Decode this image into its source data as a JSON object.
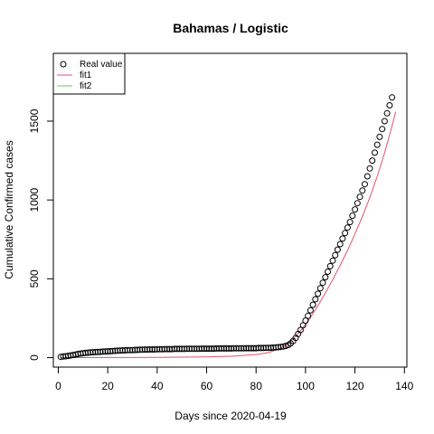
{
  "chart_data": {
    "type": "scatter",
    "title": "Bahamas / Logistic",
    "xlabel": "Days since 2020-04-19",
    "ylabel": "Cumulative Confirmed cases",
    "xlim": [
      -2,
      141
    ],
    "ylim": [
      -60,
      1930
    ],
    "xticks": [
      0,
      20,
      40,
      60,
      80,
      100,
      120,
      140
    ],
    "yticks": [
      0,
      500,
      1000,
      1500
    ],
    "legend_position": "top-left",
    "series": [
      {
        "name": "Real value",
        "kind": "points",
        "color": "#000000",
        "x": [
          1,
          2,
          3,
          4,
          5,
          6,
          7,
          8,
          9,
          10,
          11,
          12,
          13,
          14,
          15,
          16,
          17,
          18,
          19,
          20,
          21,
          22,
          23,
          24,
          25,
          26,
          27,
          28,
          29,
          30,
          31,
          32,
          33,
          34,
          35,
          36,
          37,
          38,
          39,
          40,
          41,
          42,
          43,
          44,
          45,
          46,
          47,
          48,
          49,
          50,
          51,
          52,
          53,
          54,
          55,
          56,
          57,
          58,
          59,
          60,
          61,
          62,
          63,
          64,
          65,
          66,
          67,
          68,
          69,
          70,
          71,
          72,
          73,
          74,
          75,
          76,
          77,
          78,
          79,
          80,
          81,
          82,
          83,
          84,
          85,
          86,
          87,
          88,
          89,
          90,
          91,
          92,
          93,
          94,
          95,
          96,
          97,
          98,
          99,
          100,
          101,
          102,
          103,
          104,
          105,
          106,
          107,
          108,
          109,
          110,
          111,
          112,
          113,
          114,
          115,
          116,
          117,
          118,
          119,
          120,
          121,
          122,
          123,
          124,
          125,
          126,
          127,
          128,
          129,
          130,
          131,
          132,
          133,
          134,
          135
        ],
        "y": [
          5,
          7,
          9,
          11,
          14,
          17,
          20,
          23,
          26,
          28,
          30,
          31,
          33,
          34,
          35,
          36,
          37,
          38,
          39,
          40,
          41,
          42,
          43,
          44,
          45,
          46,
          46,
          47,
          48,
          48,
          49,
          49,
          50,
          50,
          51,
          51,
          52,
          52,
          52,
          53,
          53,
          53,
          54,
          54,
          54,
          54,
          55,
          55,
          55,
          55,
          55,
          56,
          56,
          56,
          56,
          56,
          56,
          57,
          57,
          57,
          57,
          57,
          57,
          58,
          58,
          58,
          58,
          58,
          58,
          58,
          59,
          59,
          59,
          59,
          59,
          60,
          60,
          60,
          60,
          60,
          61,
          61,
          61,
          62,
          62,
          63,
          64,
          65,
          66,
          68,
          70,
          74,
          80,
          90,
          105,
          125,
          150,
          175,
          205,
          235,
          265,
          300,
          335,
          370,
          405,
          440,
          475,
          510,
          545,
          580,
          615,
          650,
          685,
          720,
          755,
          790,
          825,
          860,
          900,
          940,
          980,
          1020,
          1060,
          1100,
          1150,
          1200,
          1250,
          1300,
          1350,
          1400,
          1450,
          1500,
          1550,
          1600,
          1650
        ]
      },
      {
        "name": "fit1",
        "kind": "line",
        "color": "#df536b",
        "x": [
          1,
          10,
          20,
          30,
          40,
          50,
          60,
          70,
          80,
          85,
          90,
          93,
          96,
          99,
          102,
          105,
          108,
          111,
          114,
          117,
          120,
          123,
          126,
          129,
          132,
          135,
          136.5
        ],
        "y": [
          0,
          0,
          1,
          1,
          2,
          3,
          5,
          9,
          20,
          32,
          60,
          90,
          135,
          190,
          255,
          330,
          410,
          495,
          585,
          680,
          785,
          895,
          1015,
          1150,
          1300,
          1470,
          1560
        ]
      },
      {
        "name": "fit2",
        "kind": "line",
        "color": "#61d04f",
        "x": [],
        "y": []
      }
    ]
  }
}
